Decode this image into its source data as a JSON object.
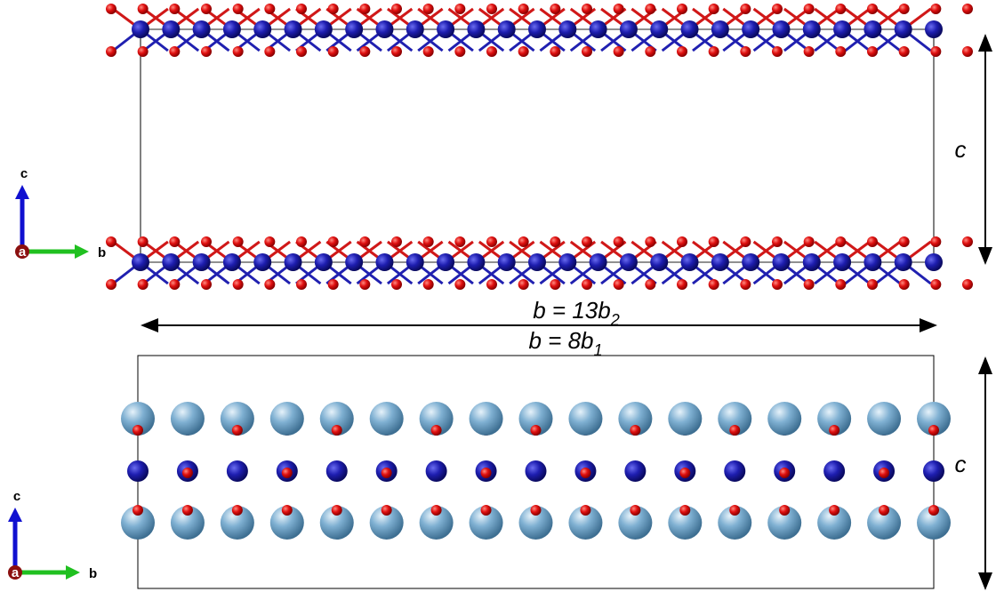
{
  "top_panel": {
    "axes": {
      "c": "c",
      "a": "a",
      "b": "b"
    },
    "dimension_c": "c"
  },
  "dimension_b": [
    {
      "main": "b = 13b",
      "sub": "2"
    },
    {
      "main": "b = 8b",
      "sub": "1"
    }
  ],
  "bottom_panel": {
    "axes": {
      "c": "c",
      "a": "a",
      "b": "b"
    },
    "dimension_c": "c"
  }
}
